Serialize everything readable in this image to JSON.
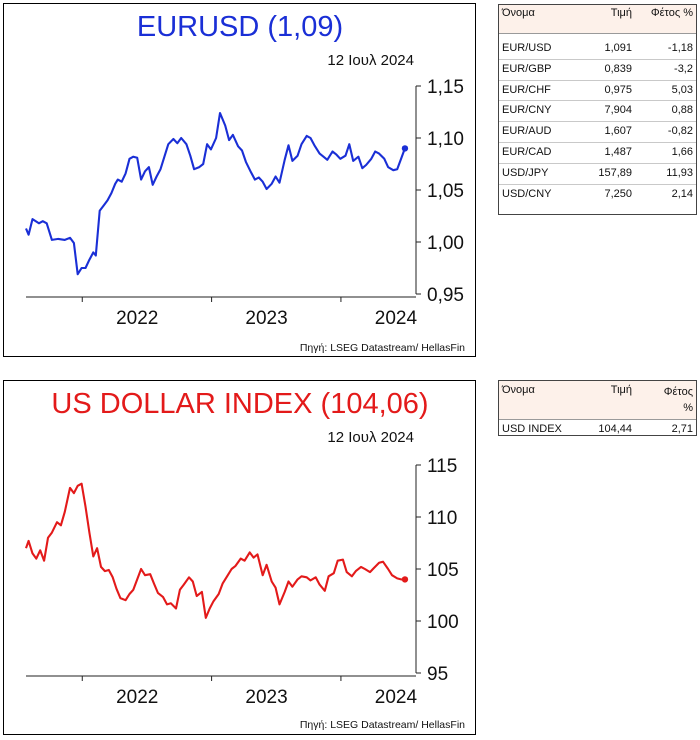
{
  "chart_data": [
    {
      "type": "line",
      "title": "EURUSD (1,09)",
      "date_label": "12 Ιουλ 2024",
      "source": "Πηγή: LSEG Datastream/ HellasFin",
      "color": "#1a2fd6",
      "ylim": [
        0.95,
        1.15
      ],
      "yticks": [
        "1,15",
        "1,10",
        "1,05",
        "1,00",
        "0,95"
      ],
      "ytick_values": [
        1.15,
        1.1,
        1.05,
        1.0,
        0.95
      ],
      "xticks": [
        "2022",
        "2023",
        "2024"
      ],
      "xlim": [
        2021.6,
        2024.6
      ],
      "series": [
        {
          "x": [
            2021.6,
            2021.62,
            2021.65,
            2021.7,
            2021.73,
            2021.76,
            2021.8,
            2021.85,
            2021.9,
            2021.94,
            2021.97,
            2022.0,
            2022.03,
            2022.06,
            2022.09,
            2022.12,
            2022.14,
            2022.17,
            2022.2,
            2022.23,
            2022.26,
            2022.29,
            2022.31,
            2022.34,
            2022.37,
            2022.4,
            2022.43,
            2022.46,
            2022.49,
            2022.52,
            2022.55,
            2022.58,
            2022.61,
            2022.64,
            2022.67,
            2022.7,
            2022.74,
            2022.77,
            2022.8,
            2022.84,
            2022.87,
            2022.9,
            2022.94,
            2022.97,
            2023.0,
            2023.03,
            2023.07,
            2023.1,
            2023.14,
            2023.17,
            2023.2,
            2023.24,
            2023.27,
            2023.3,
            2023.34,
            2023.37,
            2023.4,
            2023.43,
            2023.46,
            2023.5,
            2023.53,
            2023.56,
            2023.6,
            2023.63,
            2023.66,
            2023.7,
            2023.73,
            2023.77,
            2023.8,
            2023.83,
            2023.87,
            2023.9,
            2023.93,
            2023.97,
            2024.0,
            2024.03,
            2024.07,
            2024.1,
            2024.13,
            2024.17,
            2024.2,
            2024.23,
            2024.27,
            2024.3,
            2024.33,
            2024.37,
            2024.4,
            2024.44,
            2024.47,
            2024.5,
            2024.53
          ],
          "y": [
            1.013,
            1.007,
            1.022,
            1.018,
            1.02,
            1.018,
            1.002,
            1.003,
            1.002,
            1.004,
            0.999,
            0.969,
            0.975,
            0.975,
            0.983,
            0.99,
            0.987,
            1.03,
            1.035,
            1.04,
            1.047,
            1.056,
            1.06,
            1.058,
            1.066,
            1.08,
            1.082,
            1.081,
            1.06,
            1.068,
            1.072,
            1.055,
            1.063,
            1.07,
            1.082,
            1.094,
            1.099,
            1.095,
            1.1,
            1.094,
            1.083,
            1.07,
            1.072,
            1.075,
            1.094,
            1.089,
            1.1,
            1.124,
            1.112,
            1.098,
            1.103,
            1.092,
            1.088,
            1.077,
            1.067,
            1.06,
            1.062,
            1.058,
            1.051,
            1.056,
            1.063,
            1.057,
            1.079,
            1.093,
            1.078,
            1.083,
            1.094,
            1.102,
            1.1,
            1.093,
            1.085,
            1.082,
            1.079,
            1.087,
            1.084,
            1.08,
            1.083,
            1.094,
            1.078,
            1.082,
            1.071,
            1.074,
            1.08,
            1.087,
            1.085,
            1.08,
            1.072,
            1.069,
            1.07,
            1.08,
            1.09
          ]
        }
      ],
      "last_point": {
        "x": 2024.53,
        "y": 1.09
      }
    },
    {
      "type": "line",
      "title": "US DOLLAR INDEX (104,06)",
      "date_label": "12 Ιουλ 2024",
      "source": "Πηγή: LSEG Datastream/ HellasFin",
      "color": "#e31a1a",
      "ylim": [
        95,
        115
      ],
      "yticks": [
        "115",
        "110",
        "105",
        "100",
        "95"
      ],
      "ytick_values": [
        115,
        110,
        105,
        100,
        95
      ],
      "xticks": [
        "2022",
        "2023",
        "2024"
      ],
      "xlim": [
        2021.6,
        2024.6
      ],
      "series": [
        {
          "x": [
            2021.6,
            2021.62,
            2021.65,
            2021.68,
            2021.71,
            2021.74,
            2021.77,
            2021.8,
            2021.84,
            2021.87,
            2021.9,
            2021.94,
            2021.97,
            2022.0,
            2022.03,
            2022.06,
            2022.09,
            2022.12,
            2022.15,
            2022.18,
            2022.21,
            2022.24,
            2022.27,
            2022.3,
            2022.33,
            2022.37,
            2022.4,
            2022.43,
            2022.46,
            2022.49,
            2022.52,
            2022.56,
            2022.59,
            2022.62,
            2022.66,
            2022.69,
            2022.72,
            2022.76,
            2022.79,
            2022.82,
            2022.86,
            2022.89,
            2022.92,
            2022.96,
            2022.99,
            2023.02,
            2023.05,
            2023.09,
            2023.12,
            2023.16,
            2023.19,
            2023.22,
            2023.26,
            2023.29,
            2023.33,
            2023.36,
            2023.39,
            2023.43,
            2023.46,
            2023.5,
            2023.53,
            2023.56,
            2023.6,
            2023.63,
            2023.66,
            2023.7,
            2023.73,
            2023.77,
            2023.8,
            2023.84,
            2023.87,
            2023.91,
            2023.94,
            2023.98,
            2024.01,
            2024.05,
            2024.08,
            2024.12,
            2024.15,
            2024.19,
            2024.22,
            2024.26,
            2024.29,
            2024.33,
            2024.36,
            2024.4,
            2024.43,
            2024.47,
            2024.5,
            2024.53
          ],
          "y": [
            107.0,
            107.7,
            106.5,
            106.0,
            106.8,
            105.8,
            108.0,
            108.5,
            109.5,
            109.2,
            110.5,
            112.8,
            112.3,
            113.0,
            113.2,
            111.0,
            108.5,
            106.2,
            107.0,
            105.2,
            104.8,
            104.9,
            104.2,
            103.1,
            102.2,
            102.0,
            102.6,
            103.0,
            104.0,
            105.0,
            104.4,
            104.5,
            103.6,
            102.7,
            102.3,
            101.6,
            101.7,
            101.2,
            103.0,
            103.5,
            104.2,
            103.8,
            102.4,
            102.8,
            100.3,
            101.2,
            101.9,
            102.6,
            103.6,
            104.4,
            105.0,
            105.3,
            106.0,
            105.8,
            106.6,
            106.1,
            106.4,
            104.4,
            105.4,
            103.8,
            103.2,
            101.6,
            102.8,
            103.8,
            103.3,
            104.0,
            104.3,
            104.2,
            103.9,
            104.2,
            103.5,
            102.9,
            104.3,
            104.6,
            105.8,
            105.9,
            104.7,
            104.3,
            104.8,
            105.2,
            105.0,
            104.7,
            105.1,
            105.6,
            105.7,
            105.0,
            104.4,
            104.1,
            104.0,
            104.0
          ]
        }
      ],
      "last_point": {
        "x": 2024.53,
        "y": 104.0
      }
    }
  ],
  "table1": {
    "headers": [
      "Όνομα",
      "Τιμή",
      "Φέτος %"
    ],
    "rows": [
      [
        "EUR/USD",
        "1,091",
        "-1,18"
      ],
      [
        "EUR/GBP",
        "0,839",
        "-3,2"
      ],
      [
        "EUR/CHF",
        "0,975",
        "5,03"
      ],
      [
        "EUR/CNY",
        "7,904",
        "0,88"
      ],
      [
        "EUR/AUD",
        "1,607",
        "-0,82"
      ],
      [
        "EUR/CAD",
        "1,487",
        "1,66"
      ],
      [
        "USD/JPY",
        "157,89",
        "11,93"
      ],
      [
        "USD/CNY",
        "7,250",
        "2,14"
      ]
    ]
  },
  "table2": {
    "headers": [
      "Όνομα",
      "Τιμή",
      "Φέτος %"
    ],
    "rows": [
      [
        "USD INDEX",
        "104,44",
        "2,71"
      ]
    ]
  }
}
